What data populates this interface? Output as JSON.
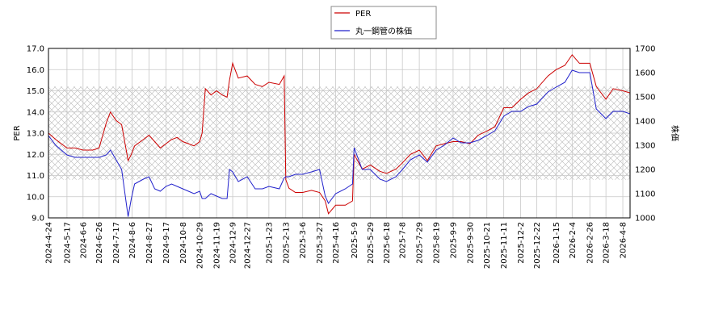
{
  "chart_data": {
    "type": "line",
    "title": "",
    "ylabel": "PER",
    "y2label": "株価",
    "ylim": [
      9,
      17
    ],
    "y2lim": [
      1000,
      1700
    ],
    "yticks": [
      "9.0",
      "10.0",
      "11.0",
      "12.0",
      "13.0",
      "14.0",
      "15.0",
      "16.0",
      "17.0"
    ],
    "y2ticks": [
      "1000",
      "1100",
      "1200",
      "1300",
      "1400",
      "1500",
      "1600",
      "1700"
    ],
    "xticks": [
      "2024-4-24",
      "2024-5-17",
      "2024-6-6",
      "2024-6-26",
      "2024-7-17",
      "2024-8-6",
      "2024-8-27",
      "2024-9-17",
      "2024-10-8",
      "2024-10-29",
      "2024-11-19",
      "2024-12-9",
      "2024-12-27",
      "2025-1-23",
      "2025-2-13",
      "2025-3-6",
      "2025-3-27",
      "2025-4-16",
      "2025-5-9",
      "2025-5-29",
      "2025-6-18",
      "2025-7-8",
      "2025-7-29",
      "2025-8-19",
      "2025-9-9",
      "2025-9-30",
      "2025-10-21",
      "2025-11-11",
      "2025-12-2",
      "2025-12-22",
      "2026-1-15",
      "2026-2-4",
      "2026-2-26",
      "2026-3-18",
      "2026-4-8"
    ],
    "grid": true,
    "legend_position": "top-center",
    "shaded_band": {
      "axis": "y",
      "from": 10.8,
      "to": 15.2
    },
    "series": [
      {
        "name": "PER",
        "axis": "left",
        "color": "#cc0000",
        "x": [
          "2024-4-24",
          "2024-5-3",
          "2024-5-17",
          "2024-5-27",
          "2024-6-6",
          "2024-6-18",
          "2024-6-26",
          "2024-7-5",
          "2024-7-10",
          "2024-7-17",
          "2024-7-24",
          "2024-8-1",
          "2024-8-5",
          "2024-8-9",
          "2024-8-20",
          "2024-8-27",
          "2024-9-3",
          "2024-9-10",
          "2024-9-17",
          "2024-9-24",
          "2024-10-1",
          "2024-10-8",
          "2024-10-15",
          "2024-10-22",
          "2024-10-29",
          "2024-11-1",
          "2024-11-5",
          "2024-11-12",
          "2024-11-19",
          "2024-11-26",
          "2024-12-2",
          "2024-12-5",
          "2024-12-9",
          "2024-12-16",
          "2024-12-27",
          "2025-1-6",
          "2025-1-15",
          "2025-1-23",
          "2025-2-5",
          "2025-2-11",
          "2025-2-13",
          "2025-2-17",
          "2025-2-25",
          "2025-3-6",
          "2025-3-17",
          "2025-3-27",
          "2025-4-3",
          "2025-4-7",
          "2025-4-16",
          "2025-4-28",
          "2025-5-7",
          "2025-5-9",
          "2025-5-19",
          "2025-5-29",
          "2025-6-10",
          "2025-6-18",
          "2025-6-30",
          "2025-7-8",
          "2025-7-18",
          "2025-7-29",
          "2025-8-8",
          "2025-8-19",
          "2025-8-29",
          "2025-9-9",
          "2025-9-19",
          "2025-9-30",
          "2025-10-10",
          "2025-10-21",
          "2025-10-31",
          "2025-11-11",
          "2025-11-21",
          "2025-12-2",
          "2025-12-12",
          "2025-12-22",
          "2026-1-5",
          "2026-1-15",
          "2026-1-26",
          "2026-2-4",
          "2026-2-13",
          "2026-2-26",
          "2026-3-6",
          "2026-3-18",
          "2026-3-27",
          "2026-4-8",
          "2026-4-17"
        ],
        "values": [
          13.0,
          12.7,
          12.3,
          12.3,
          12.2,
          12.2,
          12.3,
          13.5,
          14.0,
          13.6,
          13.4,
          11.7,
          12.0,
          12.4,
          12.7,
          12.9,
          12.6,
          12.3,
          12.5,
          12.7,
          12.8,
          12.6,
          12.5,
          12.4,
          12.6,
          13.0,
          15.1,
          14.8,
          15.0,
          14.8,
          14.7,
          15.5,
          16.3,
          15.6,
          15.7,
          15.3,
          15.2,
          15.4,
          15.3,
          15.7,
          10.8,
          10.4,
          10.2,
          10.2,
          10.3,
          10.2,
          9.8,
          9.2,
          9.6,
          9.6,
          9.8,
          12.0,
          11.3,
          11.5,
          11.2,
          11.1,
          11.3,
          11.6,
          12.0,
          12.2,
          11.7,
          12.4,
          12.5,
          12.6,
          12.6,
          12.5,
          12.9,
          13.1,
          13.3,
          14.2,
          14.2,
          14.6,
          14.9,
          15.1,
          15.7,
          16.0,
          16.2,
          16.7,
          16.3,
          16.3,
          15.2,
          14.6,
          15.1,
          15.0,
          14.9
        ]
      },
      {
        "name": "丸一鋼管の株価",
        "axis": "right",
        "color": "#2222cc",
        "x": [
          "2024-4-24",
          "2024-5-3",
          "2024-5-17",
          "2024-5-27",
          "2024-6-6",
          "2024-6-18",
          "2024-6-26",
          "2024-7-5",
          "2024-7-10",
          "2024-7-17",
          "2024-7-24",
          "2024-8-1",
          "2024-8-5",
          "2024-8-9",
          "2024-8-20",
          "2024-8-27",
          "2024-9-3",
          "2024-9-10",
          "2024-9-17",
          "2024-9-24",
          "2024-10-1",
          "2024-10-8",
          "2024-10-15",
          "2024-10-22",
          "2024-10-29",
          "2024-11-1",
          "2024-11-5",
          "2024-11-12",
          "2024-11-19",
          "2024-11-26",
          "2024-12-2",
          "2024-12-5",
          "2024-12-9",
          "2024-12-16",
          "2024-12-27",
          "2025-1-6",
          "2025-1-15",
          "2025-1-23",
          "2025-2-5",
          "2025-2-11",
          "2025-2-13",
          "2025-2-17",
          "2025-2-25",
          "2025-3-6",
          "2025-3-17",
          "2025-3-27",
          "2025-4-3",
          "2025-4-7",
          "2025-4-16",
          "2025-4-28",
          "2025-5-7",
          "2025-5-9",
          "2025-5-19",
          "2025-5-29",
          "2025-6-10",
          "2025-6-18",
          "2025-6-30",
          "2025-7-8",
          "2025-7-18",
          "2025-7-29",
          "2025-8-8",
          "2025-8-19",
          "2025-8-29",
          "2025-9-9",
          "2025-9-19",
          "2025-9-30",
          "2025-10-10",
          "2025-10-21",
          "2025-10-31",
          "2025-11-11",
          "2025-11-21",
          "2025-12-2",
          "2025-12-12",
          "2025-12-22",
          "2026-1-5",
          "2026-1-15",
          "2026-1-26",
          "2026-2-4",
          "2026-2-13",
          "2026-2-26",
          "2026-3-6",
          "2026-3-18",
          "2026-3-27",
          "2026-4-8",
          "2026-4-17"
        ],
        "values": [
          1340,
          1300,
          1260,
          1250,
          1250,
          1250,
          1250,
          1260,
          1280,
          1240,
          1200,
          1005,
          1080,
          1140,
          1160,
          1170,
          1120,
          1110,
          1130,
          1140,
          1130,
          1120,
          1110,
          1100,
          1110,
          1080,
          1080,
          1100,
          1090,
          1080,
          1080,
          1200,
          1190,
          1150,
          1170,
          1120,
          1120,
          1130,
          1120,
          1165,
          1170,
          1170,
          1180,
          1180,
          1190,
          1200,
          1090,
          1060,
          1100,
          1120,
          1140,
          1290,
          1200,
          1200,
          1160,
          1150,
          1170,
          1200,
          1240,
          1260,
          1230,
          1280,
          1300,
          1330,
          1310,
          1310,
          1320,
          1340,
          1360,
          1420,
          1440,
          1440,
          1460,
          1470,
          1520,
          1540,
          1560,
          1610,
          1600,
          1600,
          1450,
          1410,
          1440,
          1440,
          1430
        ]
      }
    ]
  }
}
